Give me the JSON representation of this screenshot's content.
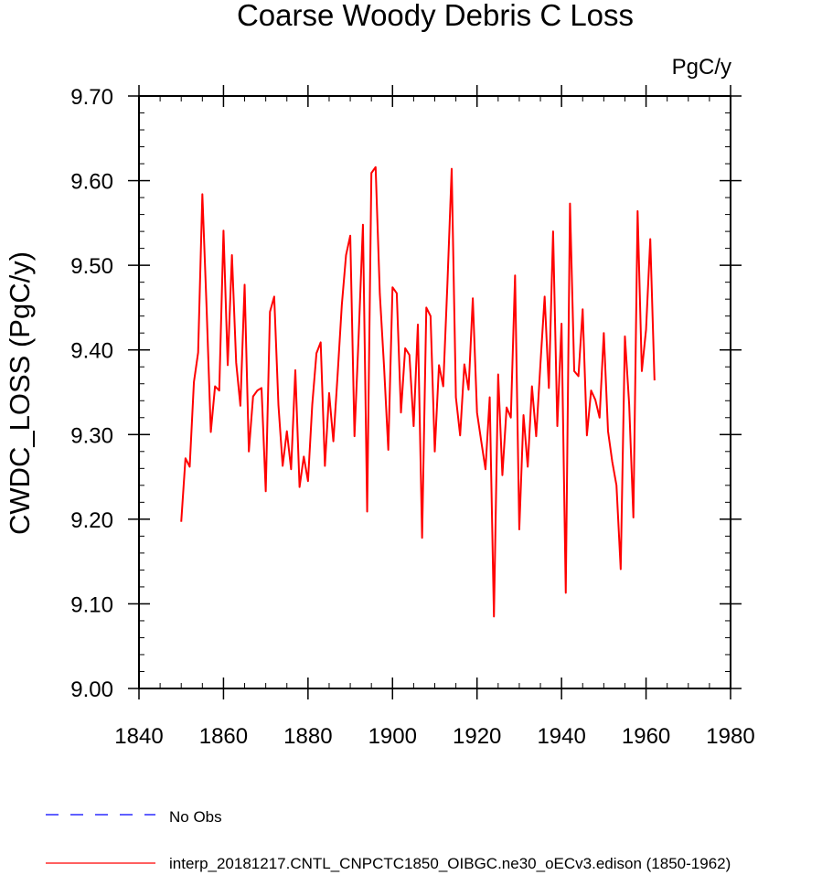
{
  "chart_data": {
    "type": "line",
    "title": "Coarse Woody Debris C Loss",
    "units_label": "PgC/y",
    "ylabel": "CWDC_LOSS  (PgC/y)",
    "xlabel": "",
    "xlim": [
      1840,
      1980
    ],
    "ylim": [
      9.0,
      9.7
    ],
    "xticks": [
      1840,
      1860,
      1880,
      1900,
      1920,
      1940,
      1960,
      1980
    ],
    "yticks": [
      "9.00",
      "9.10",
      "9.20",
      "9.30",
      "9.40",
      "9.50",
      "9.60",
      "9.70"
    ],
    "grid": false,
    "legend_position": "bottom-left",
    "series": [
      {
        "name": "No Obs",
        "color": "#0000ff",
        "dash": "dashed",
        "x": [],
        "values": []
      },
      {
        "name": "interp_20181217.CNTL_CNPCTC1850_OIBGC.ne30_oECv3.edison (1850-1962)",
        "color": "#ff0000",
        "dash": "solid",
        "x_start": 1850,
        "x_step": 1,
        "values": [
          9.197,
          9.272,
          9.262,
          9.362,
          9.397,
          9.584,
          9.45,
          9.303,
          9.357,
          9.352,
          9.541,
          9.382,
          9.512,
          9.385,
          9.334,
          9.477,
          9.28,
          9.345,
          9.352,
          9.355,
          9.233,
          9.445,
          9.463,
          9.335,
          9.263,
          9.304,
          9.259,
          9.376,
          9.238,
          9.274,
          9.245,
          9.335,
          9.396,
          9.409,
          9.263,
          9.349,
          9.292,
          9.37,
          9.453,
          9.512,
          9.535,
          9.298,
          9.418,
          9.548,
          9.209,
          9.609,
          9.616,
          9.466,
          9.38,
          9.282,
          9.474,
          9.467,
          9.326,
          9.402,
          9.394,
          9.31,
          9.43,
          9.178,
          9.45,
          9.44,
          9.28,
          9.382,
          9.357,
          9.479,
          9.614,
          9.344,
          9.299,
          9.383,
          9.353,
          9.461,
          9.326,
          9.292,
          9.259,
          9.344,
          9.085,
          9.371,
          9.252,
          9.332,
          9.32,
          9.488,
          9.188,
          9.323,
          9.262,
          9.357,
          9.298,
          9.383,
          9.463,
          9.355,
          9.54,
          9.31,
          9.431,
          9.113,
          9.573,
          9.375,
          9.369,
          9.448,
          9.299,
          9.352,
          9.341,
          9.32,
          9.42,
          9.304,
          9.268,
          9.24,
          9.141,
          9.416,
          9.336,
          9.202,
          9.564,
          9.375,
          9.424,
          9.531,
          9.364
        ]
      }
    ]
  }
}
